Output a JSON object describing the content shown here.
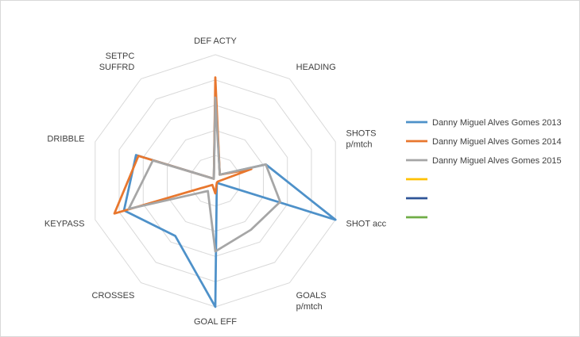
{
  "chart_data": {
    "type": "radar",
    "title": "",
    "axes": [
      [
        "DEF ACTY"
      ],
      [
        "HEADING"
      ],
      [
        "SHOTS",
        "p/mtch"
      ],
      [
        "SHOT acc"
      ],
      [
        "GOALS",
        "p/mtch"
      ],
      [
        "GOAL EFF"
      ],
      [
        "CROSSES"
      ],
      [
        "KEYPASS"
      ],
      [
        "DRIBBLE"
      ],
      [
        "SETPC",
        "SUFFRD"
      ]
    ],
    "range": [
      0,
      5
    ],
    "grid_levels": 5,
    "series": [
      {
        "name": "Danny Miguel Alves Gomes 2013",
        "color": "#4e91c9",
        "values": [
          3.6,
          0.3,
          2.1,
          5.0,
          0.1,
          5.0,
          2.7,
          3.8,
          3.3,
          0.1
        ]
      },
      {
        "name": "Danny Miguel Alves Gomes 2014",
        "color": "#e8772e",
        "values": [
          4.1,
          0.3,
          1.5,
          0.1,
          0.1,
          0.5,
          0.2,
          4.2,
          3.2,
          0.1
        ]
      },
      {
        "name": "Danny Miguel Alves Gomes 2015",
        "color": "#a6a6a6",
        "values": [
          3.3,
          0.3,
          2.1,
          2.7,
          2.4,
          2.8,
          0.5,
          3.6,
          2.6,
          0.1
        ]
      },
      {
        "name": "",
        "color": "#ffc000",
        "values": []
      },
      {
        "name": "",
        "color": "#2f5597",
        "values": []
      },
      {
        "name": "",
        "color": "#70ad47",
        "values": []
      }
    ],
    "legend": "right"
  }
}
